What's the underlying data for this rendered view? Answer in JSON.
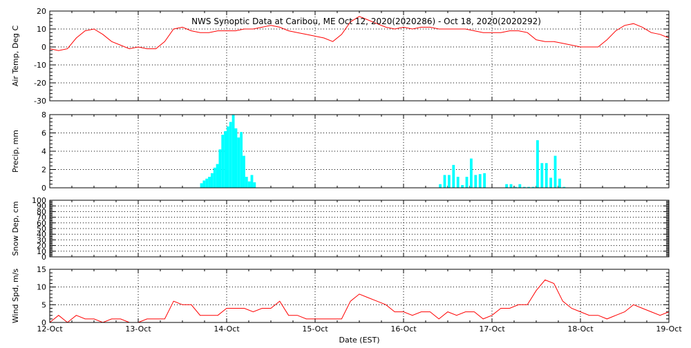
{
  "chart_data": {
    "title": "NWS Synoptic Data at Caribou, ME   Oct 12, 2020(2020286) - Oct 18, 2020(2020292)",
    "xlabel": "Date (EST)",
    "x_ticks": [
      "12-Oct",
      "13-Oct",
      "14-Oct",
      "15-Oct",
      "16-Oct",
      "17-Oct",
      "18-Oct",
      "19-Oct"
    ],
    "xlim": [
      "2020-10-12",
      "2020-10-19"
    ],
    "grid": true,
    "panels": [
      {
        "type": "line",
        "ylabel": "Air Temp, Deg C",
        "ylim": [
          -30,
          20
        ],
        "yticks": [
          -30,
          -20,
          -10,
          0,
          10,
          20
        ],
        "color": "#ff0000",
        "series": [
          {
            "x": [
              0,
              0.1,
              0.2,
              0.3,
              0.4,
              0.5,
              0.6,
              0.7,
              0.8,
              0.9,
              1.0,
              1.1,
              1.2,
              1.3,
              1.4,
              1.5,
              1.6,
              1.7,
              1.8,
              1.9,
              2.0,
              2.1,
              2.2,
              2.3,
              2.4,
              2.5,
              2.6,
              2.7,
              2.8,
              2.9,
              3.0,
              3.1,
              3.2,
              3.3,
              3.4,
              3.5,
              3.6,
              3.7,
              3.8,
              3.9,
              4.0,
              4.1,
              4.2,
              4.3,
              4.4,
              4.5,
              4.6,
              4.7,
              4.8,
              4.9,
              5.0,
              5.1,
              5.2,
              5.3,
              5.4,
              5.5,
              5.6,
              5.7,
              5.8,
              5.9,
              6.0,
              6.1,
              6.2,
              6.3,
              6.4,
              6.5,
              6.6,
              6.7,
              6.8,
              6.9,
              7.0
            ],
            "y": [
              -1,
              -2,
              -1,
              5,
              9,
              10,
              7,
              3,
              1,
              -1,
              0,
              -1,
              -1,
              3,
              10,
              11,
              9,
              8,
              8,
              9,
              9,
              9,
              10,
              10,
              11,
              12,
              11,
              9,
              8,
              7,
              6,
              5,
              3,
              7,
              14,
              17,
              15,
              13,
              11,
              10,
              11,
              10,
              11,
              11,
              10,
              10,
              10,
              10,
              9,
              8,
              8,
              8,
              9,
              9,
              8,
              4,
              3,
              3,
              2,
              1,
              0,
              0,
              0,
              4,
              9,
              12,
              13,
              11,
              8,
              7,
              5
            ]
          }
        ]
      },
      {
        "type": "bar",
        "ylabel": "Precip, mm",
        "ylim": [
          0,
          8
        ],
        "yticks": [
          0,
          2,
          4,
          6,
          8
        ],
        "color": "#00ffff",
        "series": [
          {
            "x": [
              1.7,
              1.73,
              1.76,
              1.79,
              1.82,
              1.85,
              1.88,
              1.91,
              1.94,
              1.97,
              2.0,
              2.03,
              2.06,
              2.09,
              2.12,
              2.15,
              2.18,
              2.21,
              2.24,
              2.27,
              2.3,
              4.4,
              4.45,
              4.5,
              4.55,
              4.6,
              4.65,
              4.7,
              4.75,
              4.8,
              4.85,
              4.9,
              4.95,
              5.0,
              5.05,
              5.1,
              5.15,
              5.2,
              5.25,
              5.3,
              5.35,
              5.4,
              5.45,
              5.5,
              5.55,
              5.6,
              5.65,
              5.7,
              5.75,
              5.8,
              5.85
            ],
            "y": [
              0.5,
              0.8,
              1.0,
              1.2,
              1.6,
              2.2,
              2.6,
              4.2,
              5.8,
              6.2,
              6.7,
              7.2,
              8.0,
              6.5,
              5.5,
              6.1,
              3.5,
              1.2,
              0.7,
              1.4,
              0.6,
              0.4,
              1.4,
              1.4,
              2.5,
              1.2,
              0.3,
              1.2,
              3.2,
              1.4,
              1.5,
              1.6,
              0,
              0,
              0,
              0,
              0.4,
              0.4,
              0.1,
              0.4,
              0.1,
              0.1,
              0.1,
              5.2,
              2.7,
              2.7,
              1.1,
              3.5,
              1.0,
              0.1,
              0
            ]
          }
        ]
      },
      {
        "type": "line",
        "ylabel": "Snow Dep, cm",
        "ylim": [
          0,
          100
        ],
        "yticks": [
          0,
          10,
          20,
          30,
          40,
          50,
          60,
          70,
          80,
          90,
          100
        ],
        "color": "#ff0000",
        "series": [
          {
            "x": [],
            "y": []
          }
        ]
      },
      {
        "type": "line",
        "ylabel": "Wind Spd, m/s",
        "ylim": [
          0,
          15
        ],
        "yticks": [
          0,
          5,
          10,
          15
        ],
        "color": "#ff0000",
        "series": [
          {
            "x": [
              0,
              0.1,
              0.2,
              0.3,
              0.4,
              0.5,
              0.6,
              0.7,
              0.8,
              0.9,
              1.0,
              1.1,
              1.2,
              1.3,
              1.4,
              1.5,
              1.6,
              1.7,
              1.8,
              1.9,
              2.0,
              2.1,
              2.2,
              2.3,
              2.4,
              2.5,
              2.6,
              2.7,
              2.8,
              2.9,
              3.0,
              3.1,
              3.2,
              3.3,
              3.4,
              3.5,
              3.6,
              3.7,
              3.8,
              3.9,
              4.0,
              4.1,
              4.2,
              4.3,
              4.4,
              4.5,
              4.6,
              4.7,
              4.8,
              4.9,
              5.0,
              5.1,
              5.2,
              5.3,
              5.4,
              5.5,
              5.6,
              5.7,
              5.8,
              5.9,
              6.0,
              6.1,
              6.2,
              6.3,
              6.4,
              6.5,
              6.6,
              6.7,
              6.8,
              6.9,
              7.0
            ],
            "y": [
              0,
              2,
              0,
              2,
              1,
              1,
              0,
              1,
              1,
              0,
              0,
              1,
              1,
              1,
              6,
              5,
              5,
              2,
              2,
              2,
              4,
              4,
              4,
              3,
              4,
              4,
              6,
              2,
              2,
              1,
              1,
              1,
              1,
              1,
              6,
              8,
              7,
              6,
              5,
              3,
              3,
              2,
              3,
              3,
              1,
              3,
              2,
              3,
              3,
              1,
              2,
              4,
              4,
              5,
              5,
              9,
              12,
              11,
              6,
              4,
              3,
              2,
              2,
              1,
              2,
              3,
              5,
              4,
              3,
              2,
              3
            ]
          }
        ]
      }
    ]
  }
}
